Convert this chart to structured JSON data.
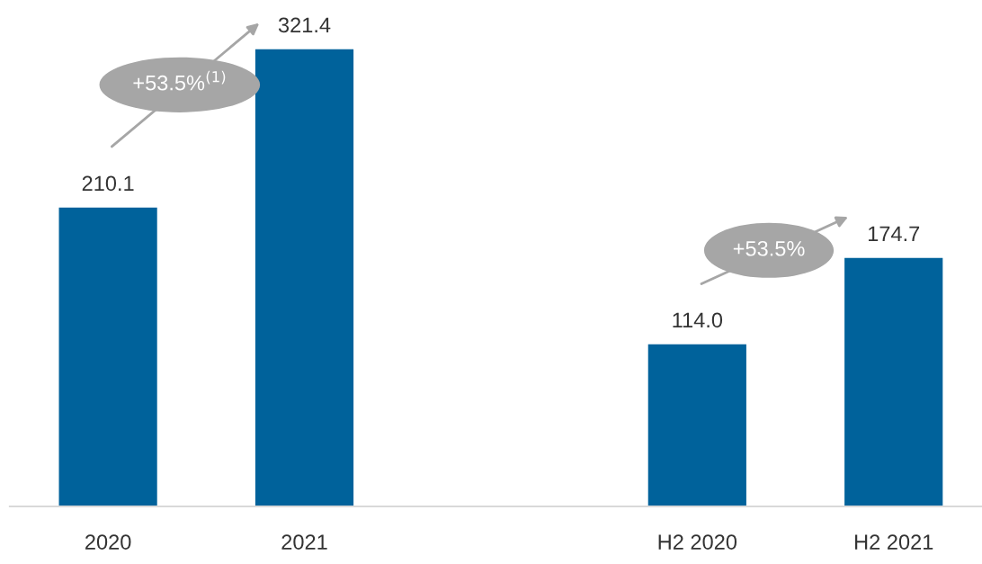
{
  "chart_data": {
    "type": "bar",
    "categories": [
      "2020",
      "2021",
      null,
      "H2 2020",
      "H2 2021"
    ],
    "values": [
      210.1,
      321.4,
      null,
      114.0,
      174.7
    ],
    "color": "#00629b",
    "value_labels": [
      "210.1",
      "321.4",
      null,
      "114.0",
      "174.7"
    ],
    "grid": false,
    "legend": false,
    "annotations": [
      "+53.5%$^{(1)}$",
      "+53.5%"
    ]
  }
}
